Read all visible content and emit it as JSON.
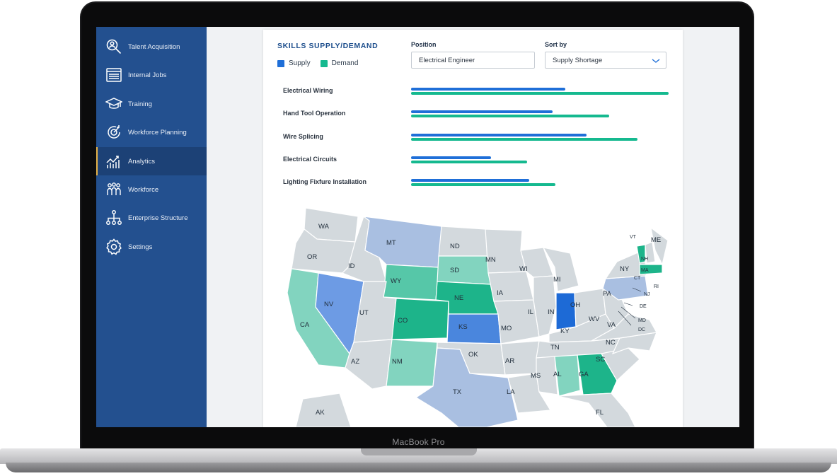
{
  "device": {
    "brand": "MacBook Pro"
  },
  "colors": {
    "sidebar": "#23508f",
    "supply": "#1f6fd8",
    "demand": "#15b98f"
  },
  "sidebar": {
    "items": [
      {
        "label": "Talent Acquisition",
        "icon": "search-person-icon"
      },
      {
        "label": "Internal Jobs",
        "icon": "document-list-icon"
      },
      {
        "label": "Training",
        "icon": "graduation-cap-icon"
      },
      {
        "label": "Workforce Planning",
        "icon": "target-refresh-icon"
      },
      {
        "label": "Analytics",
        "icon": "line-chart-icon",
        "active": true
      },
      {
        "label": "Workforce",
        "icon": "people-group-icon"
      },
      {
        "label": "Enterprise Structure",
        "icon": "org-chart-icon"
      },
      {
        "label": "Settings",
        "icon": "gear-icon"
      }
    ]
  },
  "panel": {
    "title": "SKILLS SUPPLY/DEMAND",
    "legend": {
      "supply": "Supply",
      "demand": "Demand"
    },
    "position": {
      "label": "Position",
      "value": "Electrical Engineer"
    },
    "sort": {
      "label": "Sort by",
      "value": "Supply Shortage"
    }
  },
  "chart_data": {
    "type": "bar",
    "orientation": "horizontal",
    "categories": [
      "Electrical Wiring",
      "Hand Tool Operation",
      "Wire Splicing",
      "Electrical Circuits",
      "Lighting Fixfure Installation"
    ],
    "series": [
      {
        "name": "Supply",
        "values": [
          0.6,
          0.55,
          0.68,
          0.31,
          0.46
        ]
      },
      {
        "name": "Demand",
        "values": [
          1.0,
          0.77,
          0.88,
          0.45,
          0.56
        ]
      }
    ]
  },
  "map": {
    "labels": [
      "WA",
      "OR",
      "CA",
      "NV",
      "ID",
      "MT",
      "WY",
      "UT",
      "AZ",
      "CO",
      "NM",
      "ND",
      "SD",
      "NE",
      "KS",
      "OK",
      "TX",
      "MN",
      "IA",
      "MO",
      "AR",
      "LA",
      "WI",
      "IL",
      "MI",
      "IN",
      "OH",
      "KY",
      "TN",
      "MS",
      "AL",
      "GA",
      "FL",
      "SC",
      "NC",
      "VA",
      "WV",
      "PA",
      "NY",
      "ME",
      "VT",
      "NH",
      "MA",
      "CT",
      "RI",
      "NJ",
      "DE",
      "MD",
      "DC",
      "AK"
    ]
  }
}
